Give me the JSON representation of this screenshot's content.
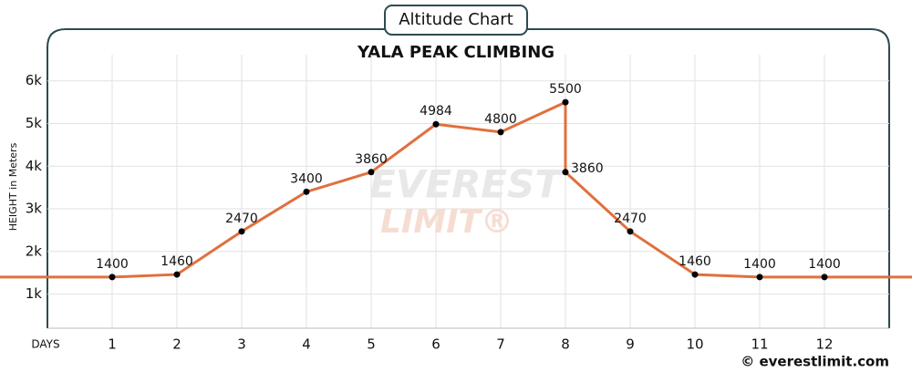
{
  "chart_data": {
    "type": "line",
    "badge": "Altitude Chart",
    "title": "YALA PEAK CLIMBING",
    "y_label": "HEIGHT in Meters",
    "x_label": "DAYS",
    "watermark": [
      "EVEREST",
      "LIMIT®"
    ],
    "credit": "© everestlimit.com",
    "x": [
      1,
      2,
      3,
      4,
      5,
      6,
      7,
      8,
      8,
      9,
      10,
      11,
      12
    ],
    "series": [
      {
        "color": "#e0703c",
        "values": [
          1400,
          1460,
          2470,
          3400,
          3860,
          4984,
          4800,
          5500,
          3860,
          2470,
          1460,
          1400,
          1400
        ]
      }
    ],
    "xlim": [
      0,
      13
    ],
    "xticks": [
      1,
      2,
      3,
      4,
      5,
      6,
      7,
      8,
      9,
      10,
      11,
      12
    ],
    "ylim": [
      200,
      6400
    ],
    "yticks": [
      {
        "value": 1000,
        "label": "1k"
      },
      {
        "value": 2000,
        "label": "2k"
      },
      {
        "value": 3000,
        "label": "3k"
      },
      {
        "value": 4000,
        "label": "4k"
      },
      {
        "value": 5000,
        "label": "5k"
      },
      {
        "value": 6000,
        "label": "6k"
      }
    ],
    "grid": true
  }
}
